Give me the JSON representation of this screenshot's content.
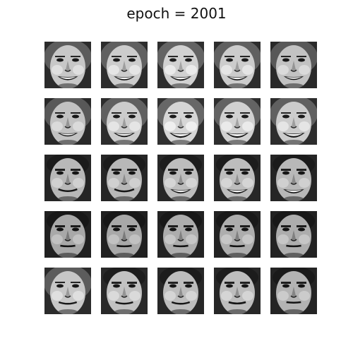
{
  "title": "epoch = 2001",
  "faces": {
    "rows": 5,
    "cols": 5,
    "tiles": [
      {
        "kind": "f",
        "tone": 0.48,
        "smile": 0.75,
        "teeth": 1
      },
      {
        "kind": "f",
        "tone": 0.5,
        "smile": 0.8,
        "teeth": 1
      },
      {
        "kind": "f",
        "tone": 0.52,
        "smile": 0.85,
        "teeth": 1
      },
      {
        "kind": "f",
        "tone": 0.5,
        "smile": 0.8,
        "teeth": 1
      },
      {
        "kind": "f",
        "tone": 0.46,
        "smile": 0.7,
        "teeth": 1
      },
      {
        "kind": "f",
        "tone": 0.46,
        "smile": 0.7,
        "teeth": 1
      },
      {
        "kind": "f",
        "tone": 0.5,
        "smile": 0.85,
        "teeth": 1
      },
      {
        "kind": "f",
        "tone": 0.54,
        "smile": 1.0,
        "teeth": 1
      },
      {
        "kind": "f",
        "tone": 0.52,
        "smile": 1.0,
        "teeth": 1
      },
      {
        "kind": "f",
        "tone": 0.5,
        "smile": 0.95,
        "teeth": 1
      },
      {
        "kind": "m",
        "tone": 0.42,
        "smile": 0.55,
        "teeth": 0
      },
      {
        "kind": "m",
        "tone": 0.42,
        "smile": 0.65,
        "teeth": 0
      },
      {
        "kind": "m",
        "tone": 0.44,
        "smile": 0.8,
        "teeth": 1
      },
      {
        "kind": "m",
        "tone": 0.44,
        "smile": 0.85,
        "teeth": 1
      },
      {
        "kind": "m",
        "tone": 0.42,
        "smile": 0.8,
        "teeth": 1
      },
      {
        "kind": "m",
        "tone": 0.36,
        "smile": 0.1,
        "teeth": 0
      },
      {
        "kind": "m",
        "tone": 0.36,
        "smile": 0.1,
        "teeth": 0
      },
      {
        "kind": "m",
        "tone": 0.38,
        "smile": 0.1,
        "teeth": 0
      },
      {
        "kind": "m",
        "tone": 0.38,
        "smile": 0.1,
        "teeth": 0
      },
      {
        "kind": "m",
        "tone": 0.38,
        "smile": 0.1,
        "teeth": 0
      },
      {
        "kind": "f",
        "tone": 0.48,
        "smile": 0.45,
        "teeth": 0
      },
      {
        "kind": "m",
        "tone": 0.46,
        "smile": 0.4,
        "teeth": 0
      },
      {
        "kind": "m",
        "tone": 0.44,
        "smile": 0.45,
        "teeth": 0
      },
      {
        "kind": "m",
        "tone": 0.44,
        "smile": 0.35,
        "teeth": 0
      },
      {
        "kind": "m",
        "tone": 0.4,
        "smile": 0.05,
        "teeth": 0
      }
    ]
  },
  "colors": {
    "background": "#ffffff",
    "title": "#111111"
  }
}
